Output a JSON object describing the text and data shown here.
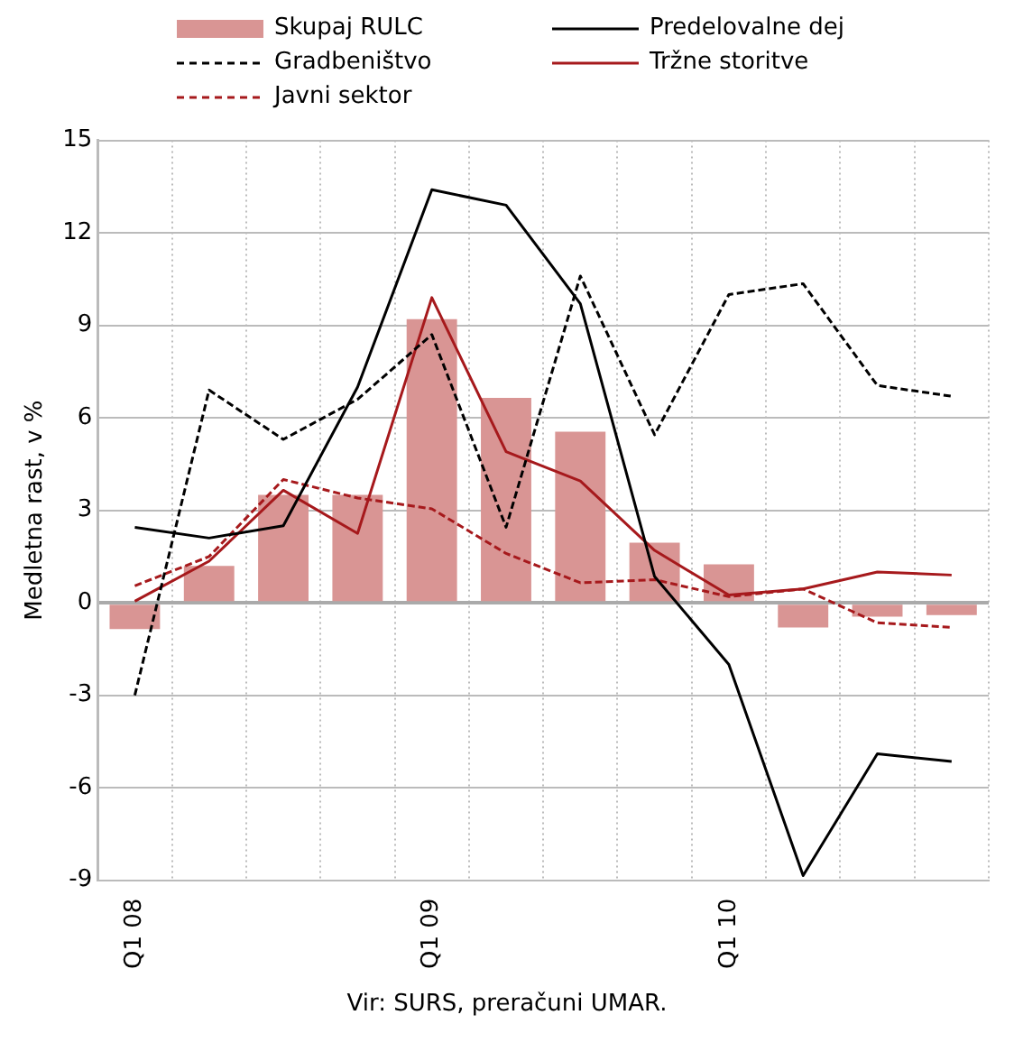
{
  "chart_data": {
    "type": "bar",
    "ylabel": "Medletna rast, v %",
    "annotations": [
      "Vir: SURS, preračuni UMAR."
    ],
    "categories": [
      "Q1 08",
      null,
      null,
      null,
      "Q1 09",
      null,
      null,
      null,
      "Q1 10",
      null,
      null,
      null
    ],
    "series": [
      {
        "name": "Skupaj RULC",
        "type": "bar",
        "color": "#d99594",
        "values": [
          -0.85,
          1.2,
          3.5,
          3.5,
          9.2,
          6.65,
          5.55,
          1.95,
          1.25,
          -0.8,
          -0.45,
          -0.4
        ]
      },
      {
        "name": "Predelovalne dej",
        "type": "line",
        "line_style": "solid",
        "color": "#000000",
        "values": [
          2.45,
          2.1,
          2.5,
          7.0,
          13.4,
          12.9,
          9.7,
          0.85,
          -2.0,
          -8.85,
          -4.9,
          -5.15
        ]
      },
      {
        "name": "Gradbeništvo",
        "type": "line",
        "line_style": "dashed",
        "color": "#000000",
        "values": [
          -3.0,
          6.9,
          5.3,
          6.6,
          8.7,
          2.45,
          10.6,
          5.45,
          10.0,
          10.35,
          7.05,
          6.7
        ]
      },
      {
        "name": "Tržne storitve",
        "type": "line",
        "line_style": "solid",
        "color": "#a6191c",
        "values": [
          0.05,
          1.35,
          3.65,
          2.25,
          9.9,
          4.9,
          3.95,
          1.7,
          0.25,
          0.45,
          1.0,
          0.9
        ]
      },
      {
        "name": "Javni sektor",
        "type": "line",
        "line_style": "dashed",
        "color": "#a6191c",
        "values": [
          0.55,
          1.5,
          4.0,
          3.4,
          3.05,
          1.6,
          0.65,
          0.75,
          0.2,
          0.45,
          -0.65,
          -0.8
        ]
      }
    ],
    "ylim": [
      -9,
      15
    ],
    "yticks": [
      -9,
      -6,
      -3,
      0,
      3,
      6,
      9,
      12,
      15
    ],
    "grid": true,
    "legend": "top",
    "marker": "none"
  }
}
